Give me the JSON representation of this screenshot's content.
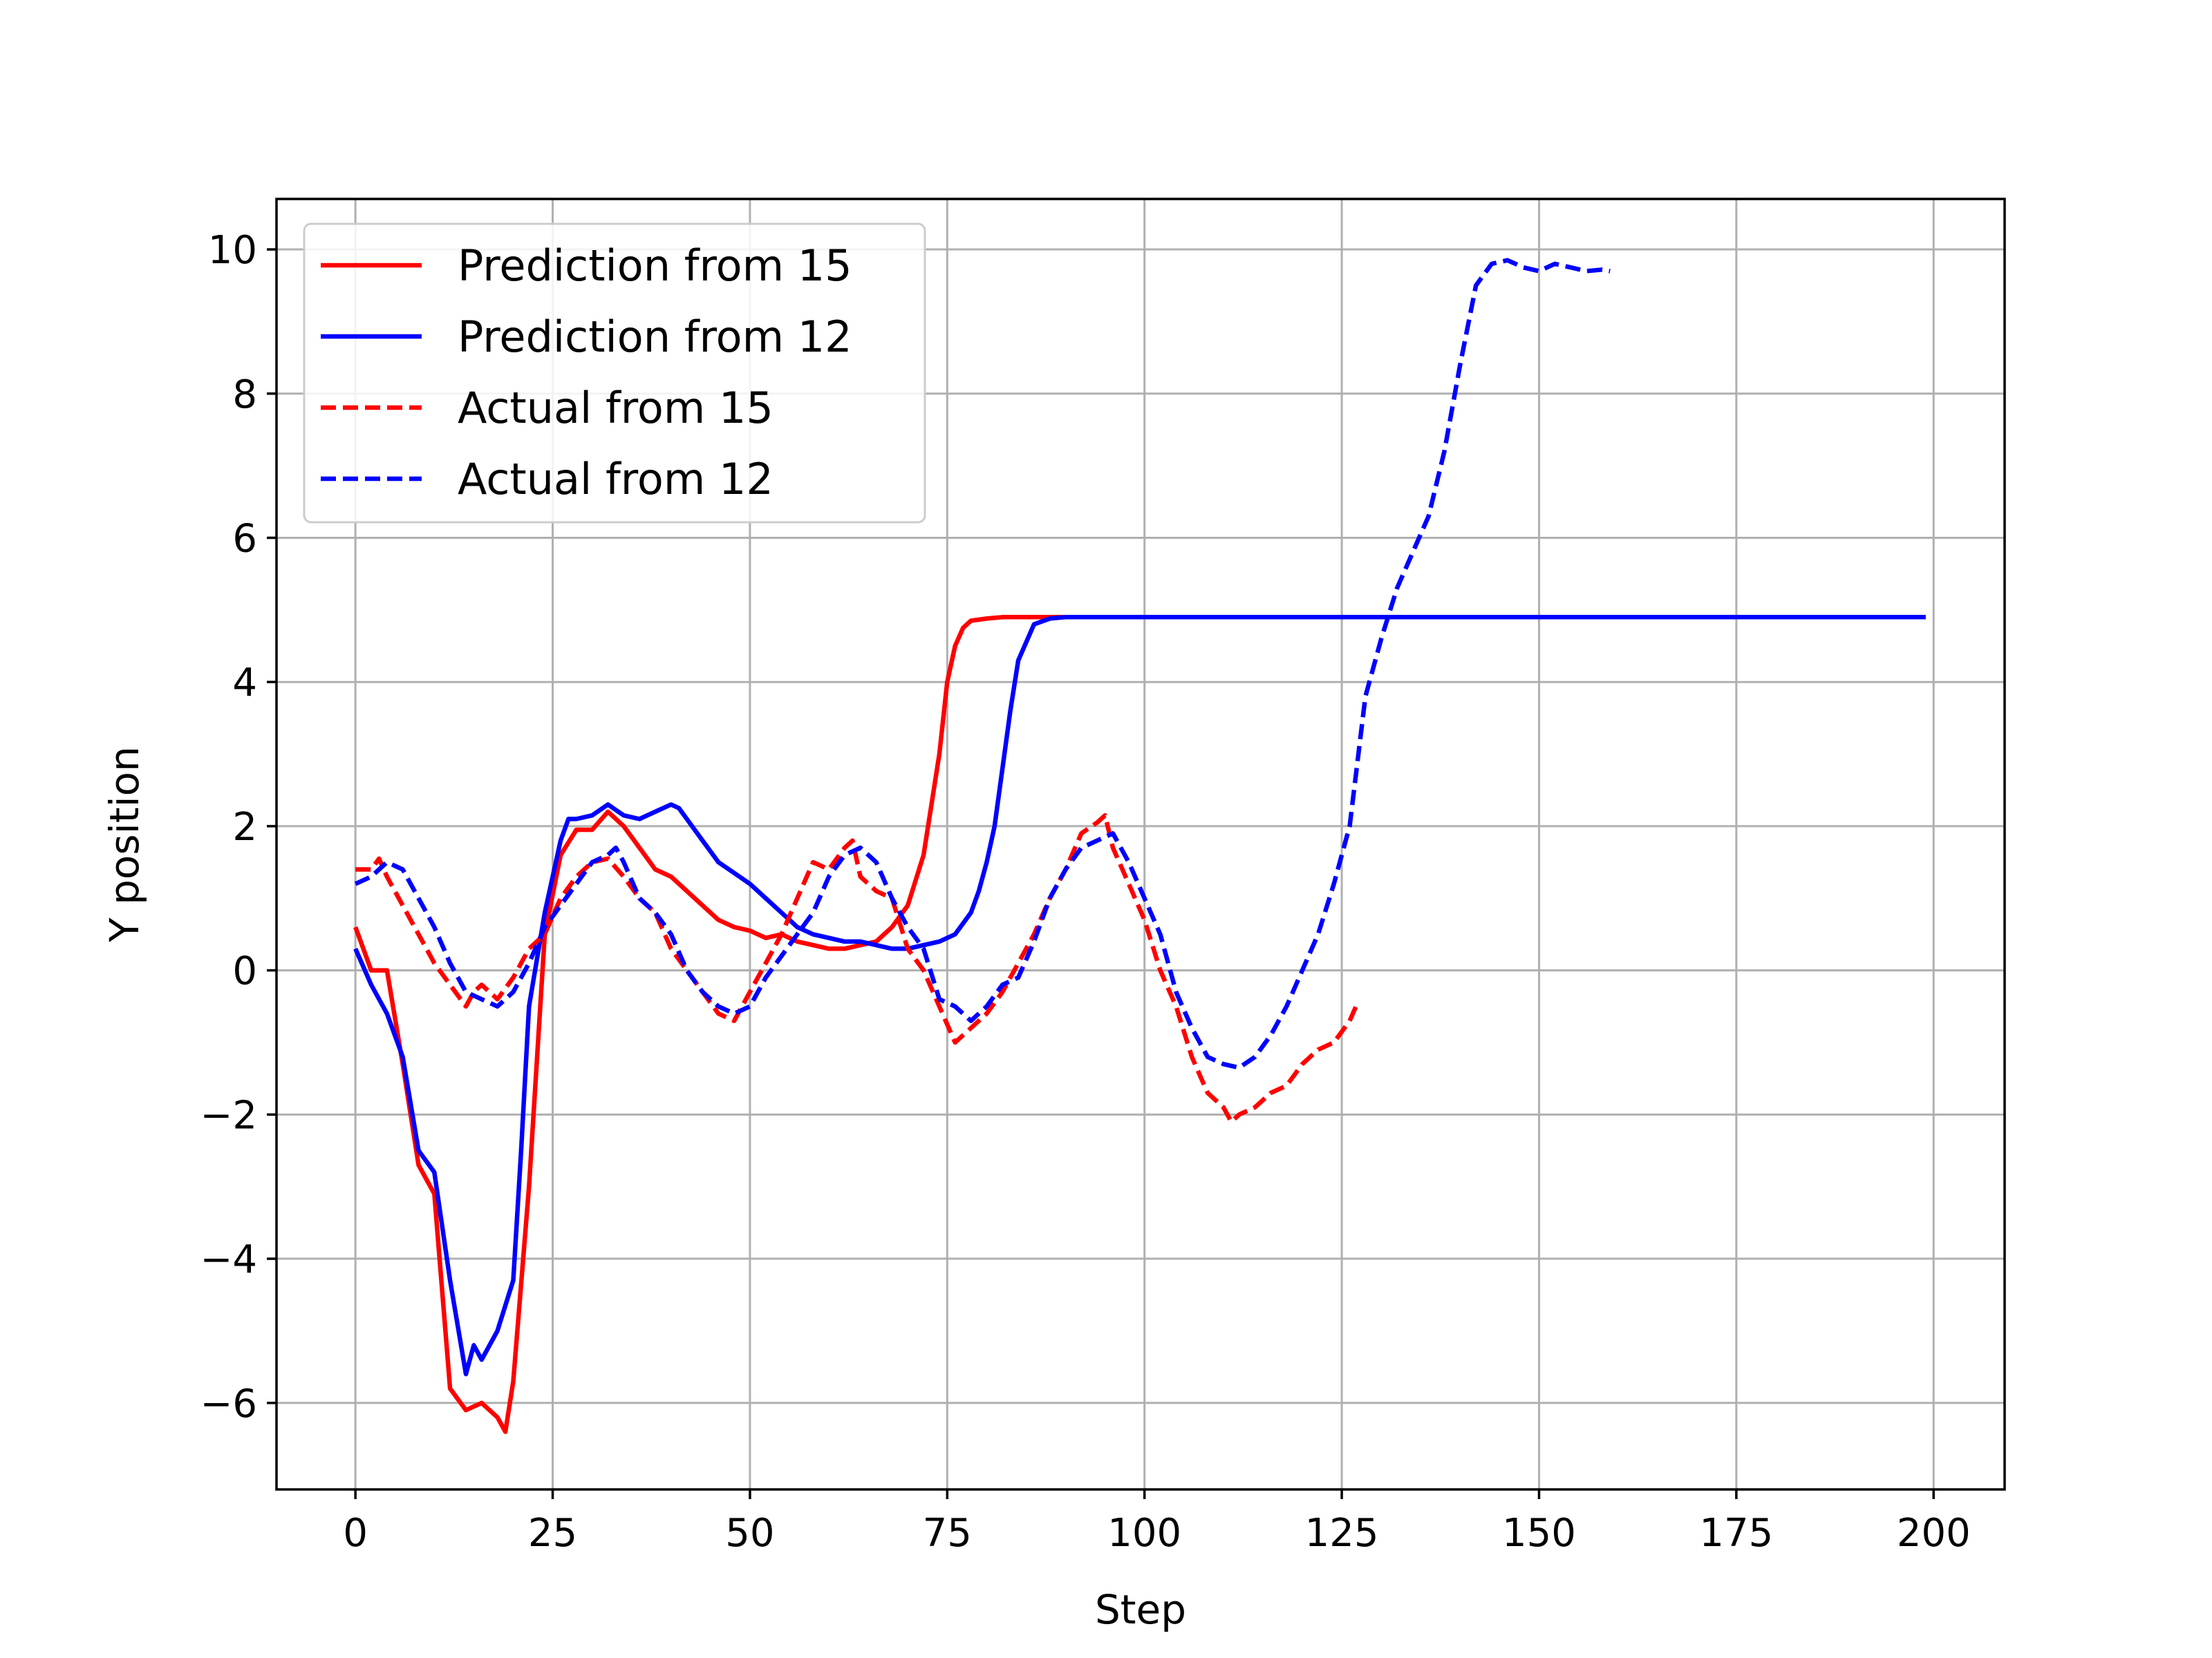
{
  "chart_data": {
    "type": "line",
    "title": "",
    "xlabel": "Step",
    "ylabel": "Y position",
    "xlim": [
      -10,
      209
    ],
    "ylim": [
      -7.2,
      10.7
    ],
    "xticks": [
      0,
      25,
      50,
      75,
      100,
      125,
      150,
      175,
      200
    ],
    "yticks": [
      -6,
      -4,
      -2,
      0,
      2,
      4,
      6,
      8,
      10
    ],
    "xtick_labels": [
      "0",
      "25",
      "50",
      "75",
      "100",
      "125",
      "150",
      "175",
      "200"
    ],
    "ytick_labels": [
      "−6",
      "−4",
      "−2",
      "0",
      "2",
      "4",
      "6",
      "8",
      "10"
    ],
    "grid": true,
    "legend_position": "top-left",
    "series": [
      {
        "name": "Prediction from 15",
        "color": "#ff0000",
        "style": "solid",
        "x": [
          0,
          2,
          4,
          6,
          8,
          10,
          12,
          14,
          16,
          18,
          19,
          20,
          22,
          24,
          26,
          28,
          30,
          32,
          34,
          36,
          38,
          40,
          42,
          44,
          46,
          48,
          50,
          52,
          54,
          56,
          58,
          60,
          62,
          64,
          66,
          68,
          70,
          72,
          74,
          75,
          76,
          77,
          78,
          80,
          82,
          84,
          86,
          88,
          90,
          100,
          120,
          150,
          180,
          199
        ],
        "y": [
          0.6,
          0.0,
          0.0,
          -1.3,
          -2.7,
          -3.1,
          -5.8,
          -6.1,
          -6.0,
          -6.2,
          -6.4,
          -5.7,
          -3.0,
          0.5,
          1.6,
          1.95,
          1.95,
          2.2,
          2.0,
          1.7,
          1.4,
          1.3,
          1.1,
          0.9,
          0.7,
          0.6,
          0.55,
          0.45,
          0.5,
          0.4,
          0.35,
          0.3,
          0.3,
          0.35,
          0.4,
          0.6,
          0.9,
          1.6,
          3.0,
          4.0,
          4.5,
          4.75,
          4.85,
          4.88,
          4.9,
          4.9,
          4.9,
          4.9,
          4.9,
          4.9,
          4.9,
          4.9,
          4.9,
          4.9
        ]
      },
      {
        "name": "Prediction from 12",
        "color": "#0000ff",
        "style": "solid",
        "x": [
          0,
          2,
          4,
          6,
          8,
          10,
          12,
          14,
          15,
          16,
          18,
          20,
          21,
          22,
          24,
          26,
          27,
          28,
          30,
          32,
          34,
          36,
          38,
          40,
          41,
          42,
          44,
          46,
          48,
          50,
          52,
          54,
          56,
          58,
          60,
          62,
          64,
          66,
          68,
          70,
          72,
          74,
          76,
          78,
          79,
          80,
          81,
          82,
          83,
          84,
          86,
          88,
          90,
          100,
          120,
          150,
          180,
          199
        ],
        "y": [
          0.3,
          -0.2,
          -0.6,
          -1.2,
          -2.5,
          -2.8,
          -4.3,
          -5.6,
          -5.2,
          -5.4,
          -5.0,
          -4.3,
          -2.5,
          -0.5,
          0.8,
          1.8,
          2.1,
          2.1,
          2.15,
          2.3,
          2.15,
          2.1,
          2.2,
          2.3,
          2.25,
          2.1,
          1.8,
          1.5,
          1.35,
          1.2,
          1.0,
          0.8,
          0.6,
          0.5,
          0.45,
          0.4,
          0.4,
          0.35,
          0.3,
          0.3,
          0.35,
          0.4,
          0.5,
          0.8,
          1.1,
          1.5,
          2.0,
          2.8,
          3.6,
          4.3,
          4.8,
          4.88,
          4.9,
          4.9,
          4.9,
          4.9,
          4.9,
          4.9
        ]
      },
      {
        "name": "Actual from 15",
        "color": "#ff0000",
        "style": "dashed",
        "x": [
          0,
          2,
          3,
          4,
          6,
          8,
          10,
          12,
          14,
          15,
          16,
          18,
          20,
          22,
          24,
          26,
          28,
          30,
          32,
          34,
          36,
          38,
          40,
          42,
          44,
          46,
          48,
          50,
          52,
          54,
          56,
          58,
          60,
          62,
          63,
          64,
          66,
          68,
          70,
          72,
          74,
          76,
          78,
          80,
          82,
          84,
          86,
          88,
          90,
          92,
          94,
          95,
          96,
          98,
          100,
          102,
          104,
          106,
          108,
          110,
          111,
          112,
          114,
          116,
          118,
          120,
          122,
          124,
          126,
          127
        ],
        "y": [
          1.4,
          1.4,
          1.55,
          1.3,
          0.9,
          0.5,
          0.1,
          -0.2,
          -0.5,
          -0.3,
          -0.2,
          -0.4,
          -0.1,
          0.3,
          0.5,
          1.0,
          1.3,
          1.5,
          1.55,
          1.3,
          1.0,
          0.8,
          0.3,
          0.0,
          -0.3,
          -0.6,
          -0.7,
          -0.3,
          0.1,
          0.5,
          1.0,
          1.5,
          1.4,
          1.7,
          1.8,
          1.3,
          1.1,
          1.0,
          0.3,
          0.0,
          -0.5,
          -1.0,
          -0.8,
          -0.6,
          -0.3,
          0.1,
          0.5,
          1.0,
          1.4,
          1.9,
          2.05,
          2.15,
          1.7,
          1.2,
          0.7,
          0.0,
          -0.5,
          -1.2,
          -1.7,
          -1.9,
          -2.1,
          -2.0,
          -1.9,
          -1.7,
          -1.6,
          -1.3,
          -1.1,
          -1.0,
          -0.7,
          -0.45
        ]
      },
      {
        "name": "Actual from 12",
        "color": "#0000ff",
        "style": "dashed",
        "x": [
          0,
          2,
          4,
          6,
          8,
          10,
          12,
          14,
          16,
          18,
          20,
          22,
          24,
          26,
          28,
          30,
          32,
          33,
          34,
          36,
          38,
          40,
          42,
          44,
          46,
          48,
          50,
          52,
          54,
          56,
          58,
          60,
          62,
          64,
          66,
          68,
          70,
          72,
          74,
          76,
          78,
          80,
          82,
          84,
          86,
          88,
          90,
          92,
          94,
          96,
          98,
          100,
          102,
          104,
          106,
          108,
          110,
          112,
          114,
          116,
          118,
          120,
          122,
          124,
          126,
          128,
          130,
          132,
          134,
          136,
          138,
          140,
          142,
          144,
          146,
          148,
          150,
          152,
          154,
          156,
          158,
          159
        ],
        "y": [
          1.2,
          1.3,
          1.5,
          1.4,
          1.0,
          0.6,
          0.1,
          -0.3,
          -0.4,
          -0.5,
          -0.3,
          0.1,
          0.6,
          0.9,
          1.2,
          1.5,
          1.6,
          1.7,
          1.5,
          1.0,
          0.8,
          0.5,
          0.0,
          -0.3,
          -0.5,
          -0.6,
          -0.5,
          -0.1,
          0.2,
          0.5,
          0.8,
          1.3,
          1.6,
          1.7,
          1.5,
          1.0,
          0.6,
          0.3,
          -0.4,
          -0.5,
          -0.7,
          -0.5,
          -0.2,
          -0.1,
          0.4,
          1.0,
          1.4,
          1.7,
          1.8,
          1.9,
          1.5,
          1.0,
          0.5,
          -0.3,
          -0.8,
          -1.2,
          -1.3,
          -1.35,
          -1.2,
          -0.9,
          -0.5,
          0.0,
          0.5,
          1.2,
          2.0,
          3.8,
          4.6,
          5.3,
          5.8,
          6.3,
          7.2,
          8.4,
          9.5,
          9.8,
          9.85,
          9.75,
          9.7,
          9.8,
          9.75,
          9.7,
          9.72,
          9.7
        ]
      }
    ]
  }
}
